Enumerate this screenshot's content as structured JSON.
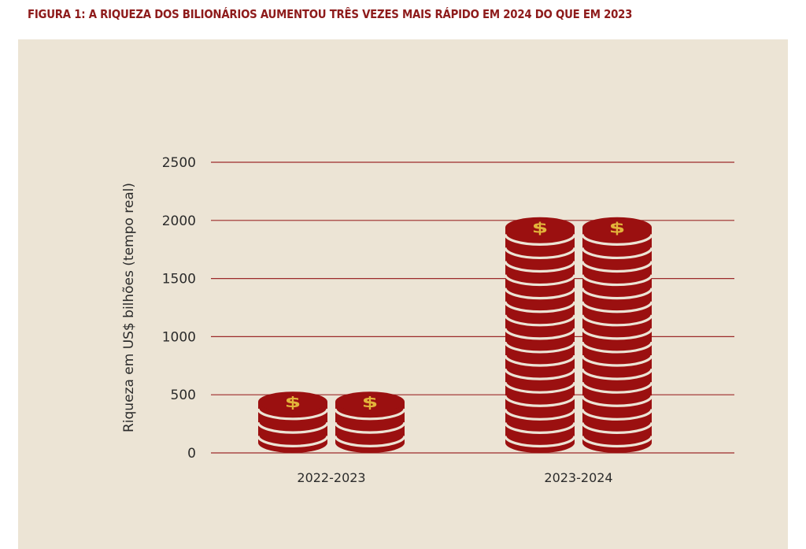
{
  "figure_title": "FIGURA 1: A RIQUEZA DOS BILIONÁRIOS AUMENTOU TRÊS VEZES MAIS RÁPIDO EM 2024 DO QUE EM 2023",
  "colors": {
    "accent": "#8e1b1b",
    "panel_background": "#ece4d5",
    "gridline": "#9c2a2a",
    "coin": "#9b1010",
    "coin_stripe": "#ece4d5",
    "dollar_sign": "#e2b43a"
  },
  "icons": {
    "coin_symbol": "dollar-sign-icon"
  },
  "chart_data": {
    "type": "bar",
    "title": "",
    "categories": [
      "2022-2023",
      "2023-2024"
    ],
    "series": [
      {
        "values": [
          500,
          2000
        ]
      },
      {
        "values": [
          500,
          2000
        ]
      }
    ],
    "xlabel": "",
    "ylabel": "Riqueza em US$ bilhões (tempo real)",
    "ylim": [
      0,
      2500
    ],
    "yticks": [
      0,
      500,
      1000,
      1500,
      2000,
      2500
    ],
    "grid": true,
    "mark_style": "stacked-coins"
  }
}
